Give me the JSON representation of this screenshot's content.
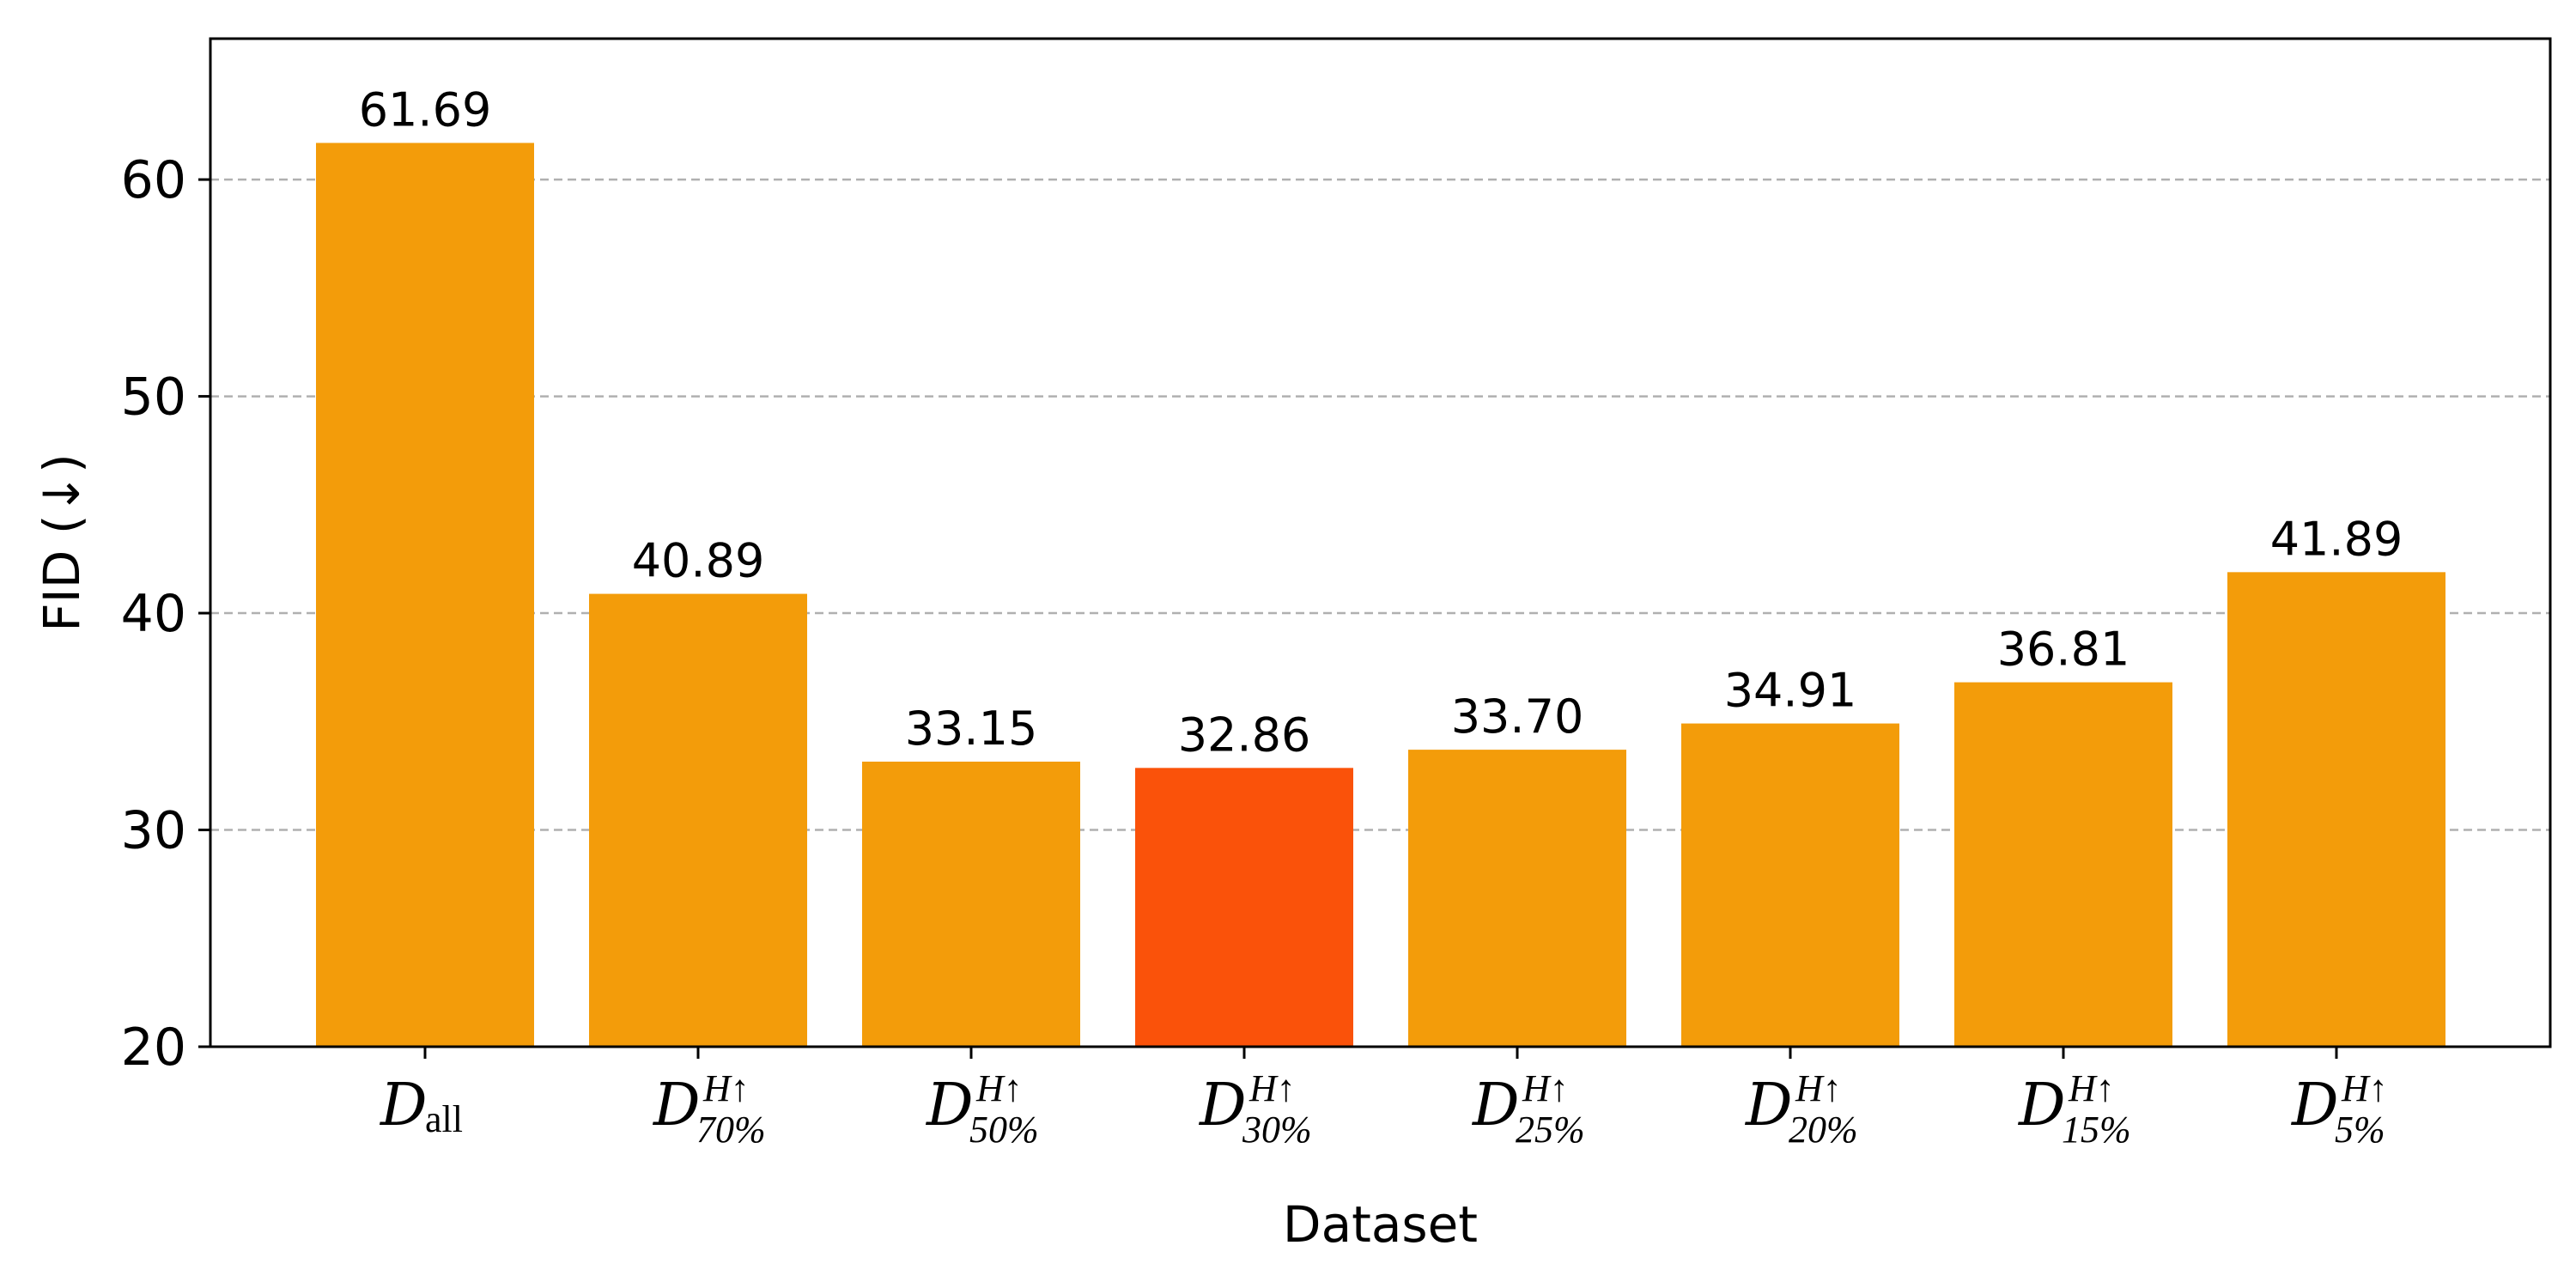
{
  "chart_data": {
    "type": "bar",
    "xlabel": "Dataset",
    "ylabel": "FID (↓)",
    "ylim": [
      20,
      66.5
    ],
    "yticks": [
      20,
      30,
      40,
      50,
      60
    ],
    "grid": "y-dashed",
    "categories": [
      {
        "main": "D",
        "sub": "all",
        "sup": ""
      },
      {
        "main": "D",
        "sub": "70%",
        "sup": "H↑"
      },
      {
        "main": "D",
        "sub": "50%",
        "sup": "H↑"
      },
      {
        "main": "D",
        "sub": "30%",
        "sup": "H↑"
      },
      {
        "main": "D",
        "sub": "25%",
        "sup": "H↑"
      },
      {
        "main": "D",
        "sub": "20%",
        "sup": "H↑"
      },
      {
        "main": "D",
        "sub": "15%",
        "sup": "H↑"
      },
      {
        "main": "D",
        "sub": "5%",
        "sup": "H↑"
      }
    ],
    "values": [
      61.69,
      40.89,
      33.15,
      32.86,
      33.7,
      34.91,
      36.81,
      41.89
    ],
    "value_labels": [
      "61.69",
      "40.89",
      "33.15",
      "32.86",
      "33.70",
      "34.91",
      "36.81",
      "41.89"
    ],
    "colors": [
      "#f39c0a",
      "#f39c0a",
      "#f39c0a",
      "#fa520a",
      "#f39c0a",
      "#f39c0a",
      "#f39c0a",
      "#f39c0a"
    ],
    "highlight_index": 3
  }
}
